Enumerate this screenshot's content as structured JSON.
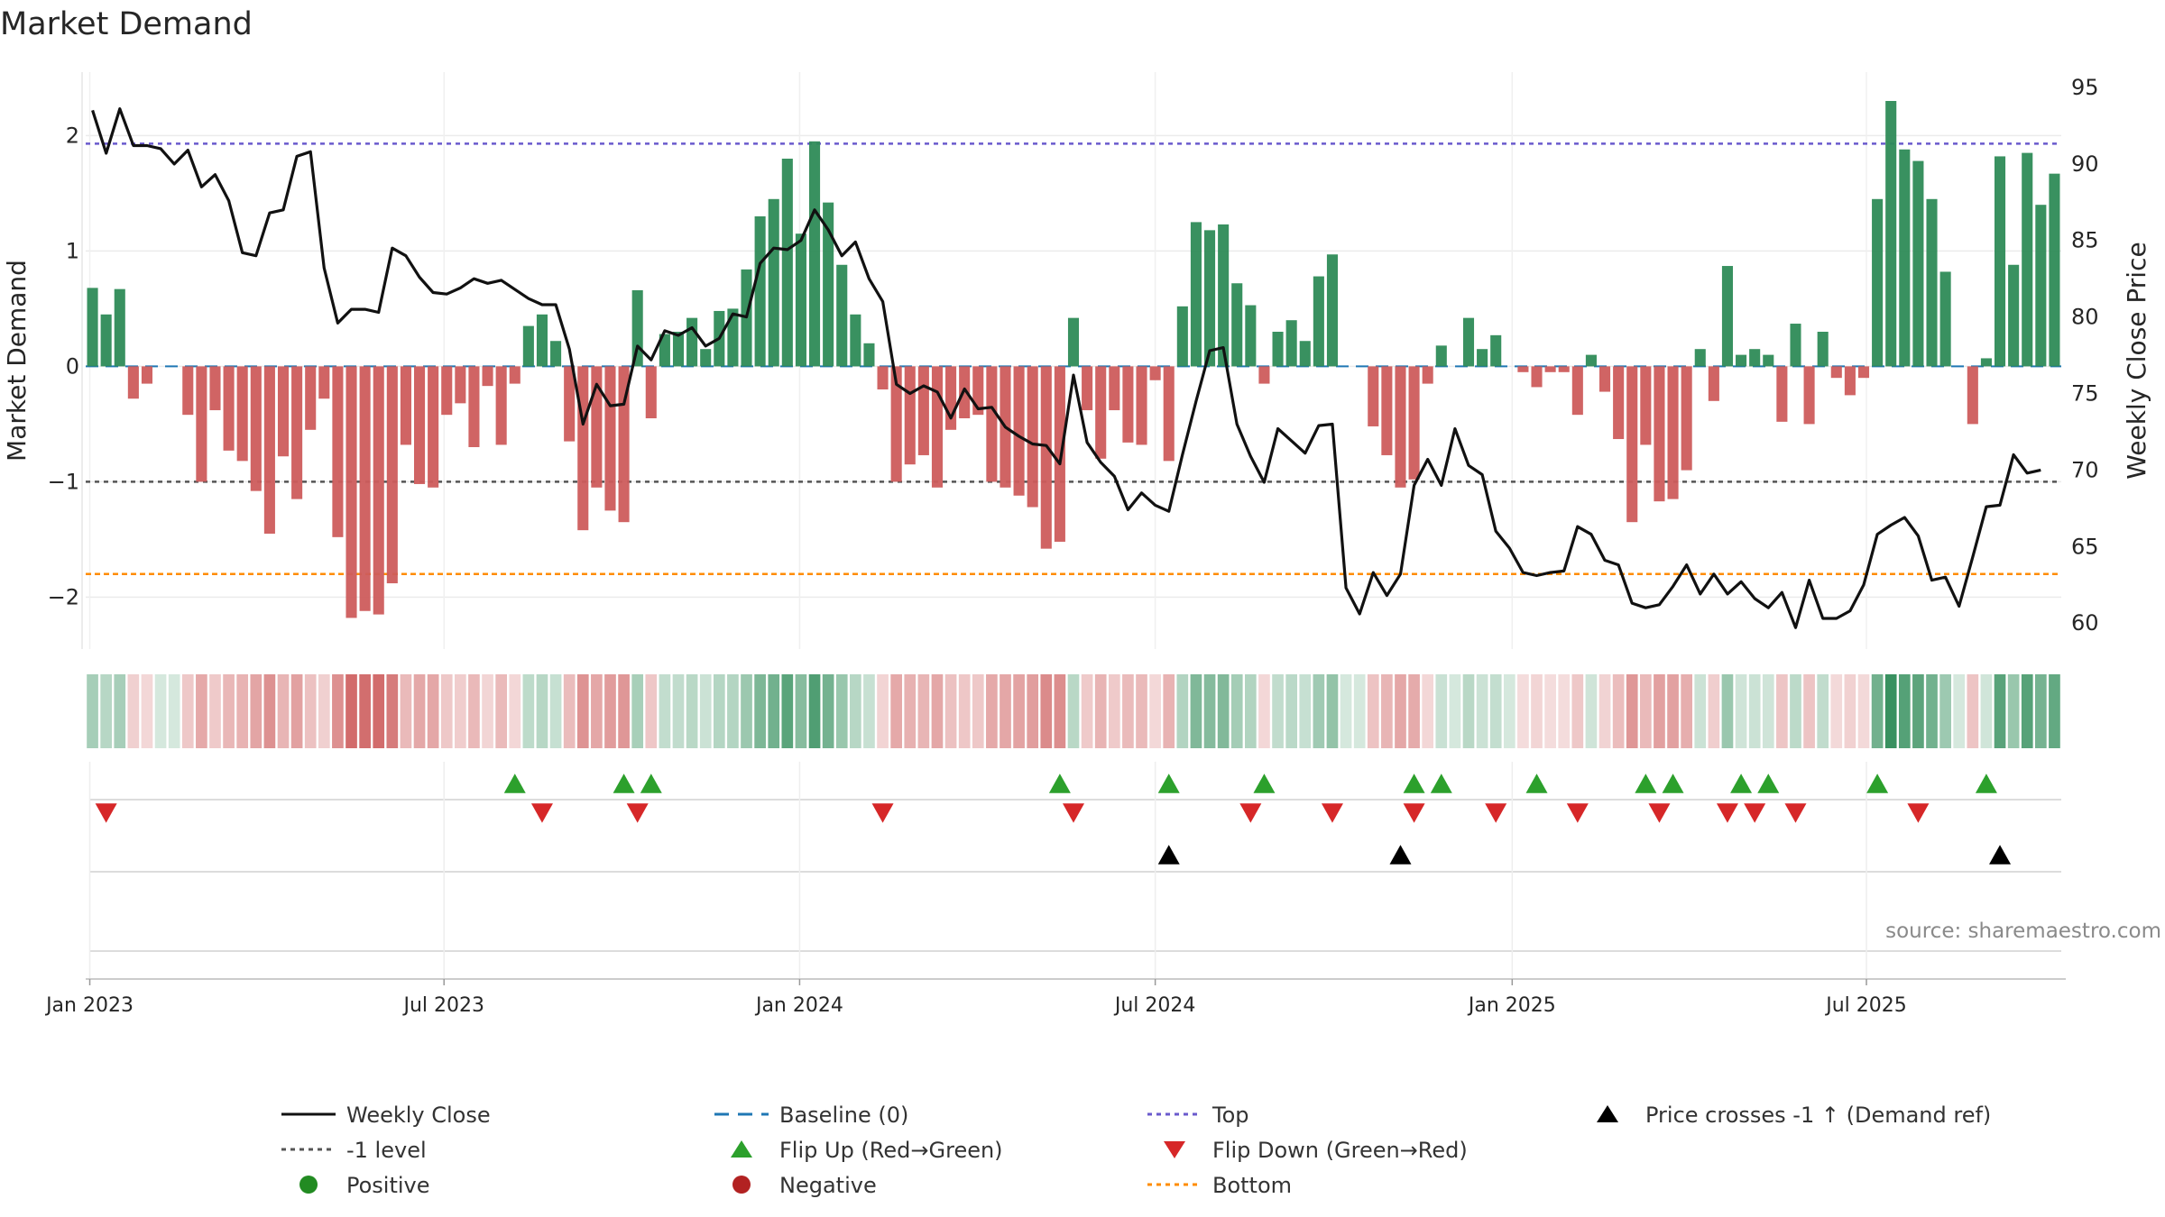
{
  "chart_data": {
    "type": "bar+line",
    "title": "Market Demand",
    "ylabel_left": "Market Demand",
    "ylabel_right": "Weekly Close Price",
    "source_text": "source: sharemaestro.com",
    "left_ylim": [
      -2.45,
      2.55
    ],
    "right_ylim": [
      58.3,
      96.0
    ],
    "left_ticks": [
      -2,
      -1,
      0,
      1,
      2
    ],
    "left_tick_labels": [
      "−2",
      "−1",
      "0",
      "1",
      "2"
    ],
    "right_ticks": [
      60,
      65,
      70,
      75,
      80,
      85,
      90,
      95
    ],
    "right_tick_labels": [
      "60",
      "65",
      "70",
      "75",
      "80",
      "85",
      "90",
      "95"
    ],
    "x_tick_labels": [
      "Jan 2023",
      "Jul 2023",
      "Jan 2024",
      "Jul 2024",
      "Jan 2025",
      "Jul 2025"
    ],
    "x_tick_week_index": [
      0.3,
      26.3,
      52.4,
      78.5,
      104.7,
      130.7
    ],
    "reference_lines": {
      "top": 1.93,
      "minus_one": -1.0,
      "bottom": -1.8
    },
    "colors": {
      "positive_bar": "#2e8b57",
      "negative_bar": "#cd5c5c",
      "price_line": "#111111",
      "baseline": "#1f77b4",
      "top_line": "#6a5acd",
      "minus_one_line": "#555555",
      "bottom_line": "#ff8c00",
      "flip_up": "#2ca02c",
      "flip_down": "#d62728",
      "cross": "#000000",
      "positive_dot": "#228b22",
      "negative_dot": "#b22222"
    },
    "demand": [
      0.68,
      0.45,
      0.67,
      -0.28,
      -0.15,
      0.0,
      0.0,
      -0.42,
      -1.0,
      -0.38,
      -0.73,
      -0.82,
      -1.08,
      -1.45,
      -0.78,
      -1.15,
      -0.55,
      -0.28,
      -1.48,
      -2.18,
      -2.12,
      -2.15,
      -1.88,
      -0.68,
      -1.02,
      -1.05,
      -0.42,
      -0.32,
      -0.7,
      -0.17,
      -0.68,
      -0.15,
      0.35,
      0.45,
      0.22,
      -0.65,
      -1.42,
      -1.05,
      -1.25,
      -1.35,
      0.66,
      -0.45,
      0.28,
      0.3,
      0.42,
      0.15,
      0.48,
      0.5,
      0.84,
      1.3,
      1.45,
      1.8,
      1.15,
      1.95,
      1.42,
      0.88,
      0.45,
      0.2,
      -0.2,
      -1.0,
      -0.85,
      -0.77,
      -1.05,
      -0.55,
      -0.45,
      -0.42,
      -1.0,
      -1.05,
      -1.12,
      -1.22,
      -1.58,
      -1.52,
      0.42,
      -0.38,
      -0.8,
      -0.38,
      -0.66,
      -0.68,
      -0.12,
      -0.82,
      0.52,
      1.25,
      1.18,
      1.23,
      0.72,
      0.53,
      -0.15,
      0.3,
      0.4,
      0.22,
      0.78,
      0.97,
      0.0,
      0.0,
      -0.52,
      -0.77,
      -1.05,
      -0.98,
      -0.15,
      0.18,
      0.0,
      0.42,
      0.15,
      0.27,
      0.0,
      -0.05,
      -0.18,
      -0.05,
      -0.05,
      -0.42,
      0.1,
      -0.22,
      -0.63,
      -1.35,
      -0.68,
      -1.17,
      -1.15,
      -0.9,
      0.15,
      -0.3,
      0.87,
      0.1,
      0.15,
      0.1,
      -0.48,
      0.37,
      -0.5,
      0.3,
      -0.1,
      -0.25,
      -0.1,
      1.45,
      2.3,
      1.88,
      1.78,
      1.45,
      0.82,
      0.0,
      -0.5,
      0.07,
      1.82,
      0.88,
      1.85,
      1.4,
      1.67
    ],
    "price": [
      93.5,
      90.7,
      93.6,
      91.2,
      91.2,
      91.0,
      90.0,
      90.9,
      88.5,
      89.3,
      87.6,
      84.2,
      84.0,
      86.8,
      87.0,
      90.5,
      90.8,
      83.2,
      79.6,
      80.5,
      80.5,
      80.3,
      84.5,
      84.0,
      82.6,
      81.6,
      81.5,
      81.9,
      82.5,
      82.2,
      82.4,
      81.8,
      81.2,
      80.8,
      80.8,
      77.9,
      73.0,
      75.6,
      74.2,
      74.3,
      78.1,
      77.2,
      79.1,
      78.8,
      79.3,
      78.1,
      78.6,
      80.2,
      80.0,
      83.5,
      84.5,
      84.4,
      85.0,
      87.0,
      85.7,
      84.0,
      84.9,
      82.5,
      81.0,
      75.6,
      75.0,
      75.5,
      75.1,
      73.4,
      75.3,
      74.0,
      74.1,
      72.8,
      72.2,
      71.7,
      71.6,
      70.4,
      76.2,
      71.8,
      70.5,
      69.6,
      67.4,
      68.5,
      67.7,
      67.3,
      71.0,
      74.5,
      77.8,
      78.0,
      73.0,
      70.9,
      69.2,
      72.7,
      71.9,
      71.1,
      72.9,
      73.0,
      62.3,
      60.6,
      63.3,
      61.8,
      63.2,
      69.0,
      70.7,
      69.0,
      72.7,
      70.3,
      69.7,
      66.0,
      64.9,
      63.3,
      63.1,
      63.3,
      63.4,
      66.3,
      65.8,
      64.1,
      63.8,
      61.3,
      61.0,
      61.2,
      62.4,
      63.8,
      61.9,
      63.2,
      61.9,
      62.7,
      61.6,
      61.0,
      62.0,
      59.7,
      62.8,
      60.3,
      60.3,
      60.8,
      62.5,
      65.8,
      66.4,
      66.9,
      65.7,
      62.8,
      63.0,
      61.1,
      64.3,
      67.6,
      67.7,
      71.0,
      69.8,
      70.0
    ],
    "flip_up_weeks": [
      31,
      39,
      41,
      71,
      79,
      86,
      97,
      99,
      106,
      114,
      116,
      121,
      123,
      131,
      139
    ],
    "flip_down_weeks": [
      1,
      33,
      40,
      58,
      72,
      85,
      91,
      97,
      103,
      109,
      115,
      120,
      122,
      125,
      134
    ],
    "cross_weeks": [
      79,
      96,
      140
    ],
    "legend": [
      {
        "label": "Weekly Close",
        "symbol": "solid-line",
        "color": "#111111"
      },
      {
        "label": "-1 level",
        "symbol": "dotted-line",
        "color": "#555555"
      },
      {
        "label": "Positive",
        "symbol": "circle",
        "color": "#228b22"
      },
      {
        "label": "Baseline (0)",
        "symbol": "dashed-line",
        "color": "#1f77b4"
      },
      {
        "label": "Flip Up (Red→Green)",
        "symbol": "triangle-up",
        "color": "#2ca02c"
      },
      {
        "label": "Negative",
        "symbol": "circle",
        "color": "#b22222"
      },
      {
        "label": "Top",
        "symbol": "dotted-line",
        "color": "#6a5acd"
      },
      {
        "label": "Flip Down (Green→Red)",
        "symbol": "triangle-down",
        "color": "#d62728"
      },
      {
        "label": "Bottom",
        "symbol": "dotted-line",
        "color": "#ff8c00"
      },
      {
        "label": "Price crosses -1 ↑ (Demand ref)",
        "symbol": "triangle-up",
        "color": "#000000"
      }
    ]
  }
}
